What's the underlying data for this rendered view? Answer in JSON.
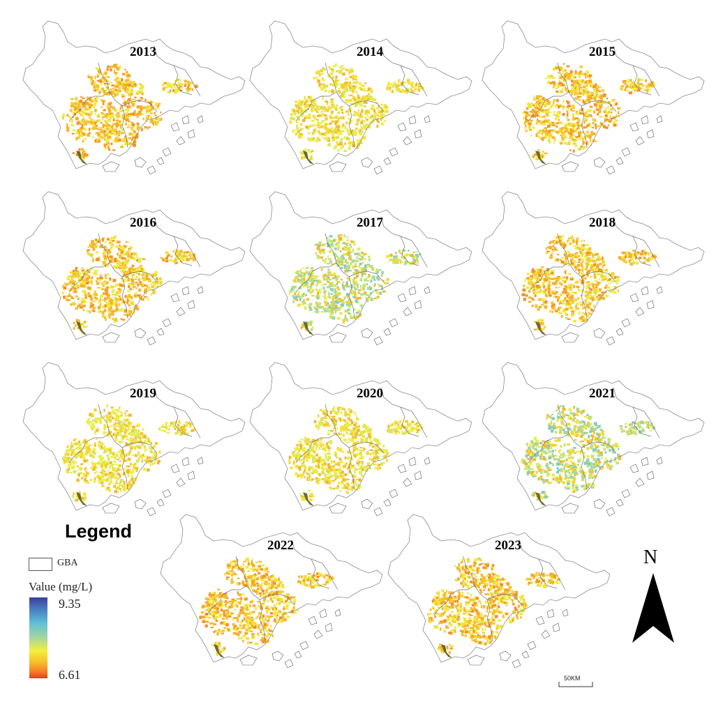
{
  "panels": [
    {
      "year": "2013",
      "palette": "warm"
    },
    {
      "year": "2014",
      "palette": "yellow"
    },
    {
      "year": "2015",
      "palette": "warm"
    },
    {
      "year": "2016",
      "palette": "warm"
    },
    {
      "year": "2017",
      "palette": "cool"
    },
    {
      "year": "2018",
      "palette": "warm"
    },
    {
      "year": "2019",
      "palette": "yellow"
    },
    {
      "year": "2020",
      "palette": "yellow"
    },
    {
      "year": "2021",
      "palette": "cool"
    },
    {
      "year": "2022",
      "palette": "warm"
    },
    {
      "year": "2023",
      "palette": "warm"
    }
  ],
  "legend": {
    "title": "Legend",
    "gba_label": "GBA",
    "value_title": "Value (mg/L)",
    "max": "9.35",
    "min": "6.61",
    "ramp_colors": [
      "#3a3f9b",
      "#4a7fc0",
      "#5fc0d8",
      "#a5d79a",
      "#f2ef3d",
      "#f6bf2a",
      "#f57d26",
      "#ea3a1f"
    ]
  },
  "north_label": "N",
  "scale_label": "50KM"
}
